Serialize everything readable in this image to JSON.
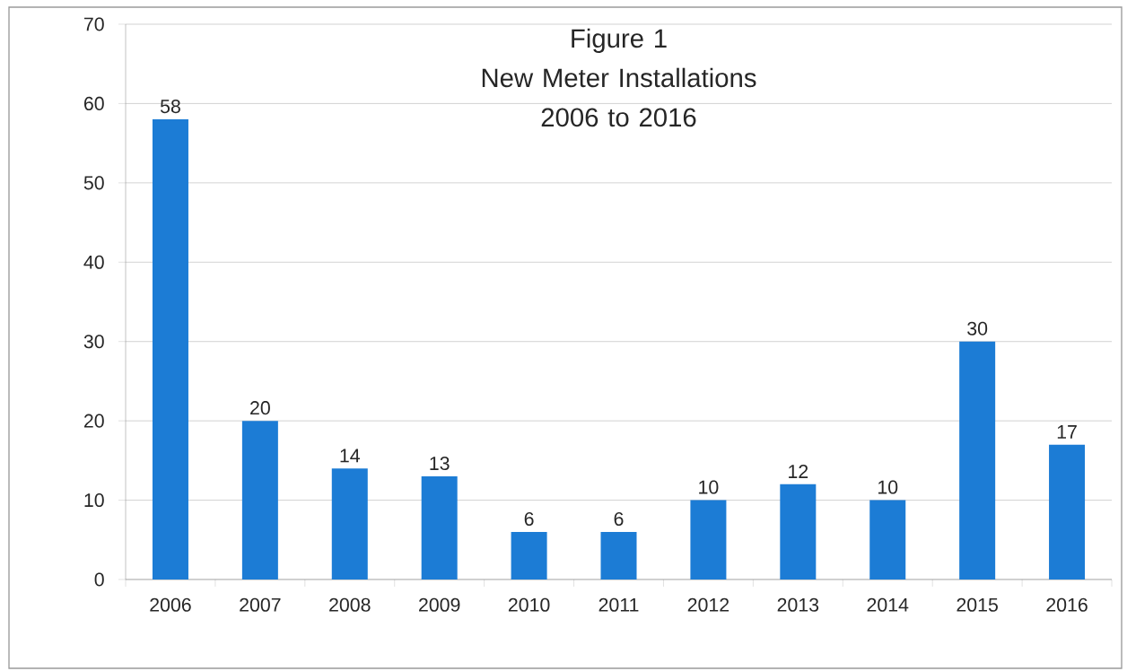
{
  "chart_data": {
    "type": "bar",
    "title": "Figure 1",
    "subtitle": "New Meter Installations 2006 to 2016",
    "categories": [
      "2006",
      "2007",
      "2008",
      "2009",
      "2010",
      "2011",
      "2012",
      "2013",
      "2014",
      "2015",
      "2016"
    ],
    "values": [
      58,
      20,
      14,
      13,
      6,
      6,
      10,
      12,
      10,
      30,
      17
    ],
    "color": "#1c7cd5",
    "ylim": [
      0,
      70
    ],
    "yticks": [
      0,
      10,
      20,
      30,
      40,
      50,
      60,
      70
    ],
    "grid": "y",
    "data_labels": true
  }
}
